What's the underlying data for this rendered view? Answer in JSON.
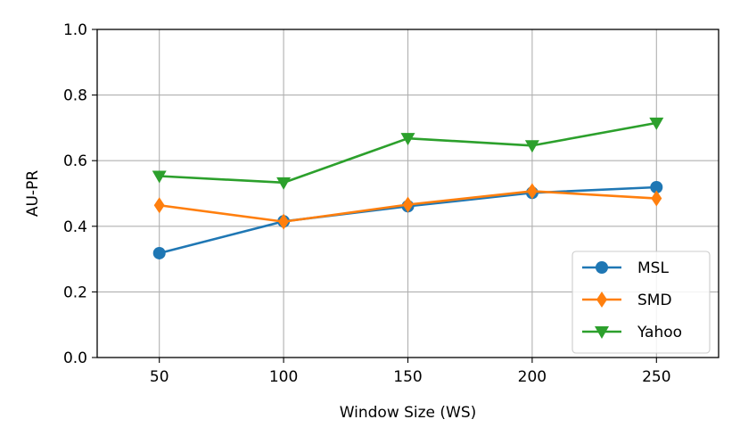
{
  "chart_data": {
    "type": "line",
    "title": "",
    "xlabel": "Window Size (WS)",
    "ylabel": "AU-PR",
    "x": [
      50,
      100,
      150,
      200,
      250
    ],
    "xlim": [
      25,
      275
    ],
    "ylim": [
      0.0,
      1.0
    ],
    "x_ticks": [
      "50",
      "100",
      "150",
      "200",
      "250"
    ],
    "y_ticks": [
      "0.0",
      "0.2",
      "0.4",
      "0.6",
      "0.8",
      "1.0"
    ],
    "grid": true,
    "legend_position": "bottom-right",
    "series": [
      {
        "name": "MSL",
        "values": [
          0.318,
          0.415,
          0.461,
          0.502,
          0.519
        ],
        "color": "#1f77b4",
        "marker": "circle"
      },
      {
        "name": "SMD",
        "values": [
          0.464,
          0.414,
          0.466,
          0.507,
          0.485
        ],
        "color": "#ff7f0e",
        "marker": "diamond"
      },
      {
        "name": "Yahoo",
        "values": [
          0.553,
          0.533,
          0.668,
          0.646,
          0.715
        ],
        "color": "#2ca02c",
        "marker": "triangle-down"
      }
    ]
  }
}
